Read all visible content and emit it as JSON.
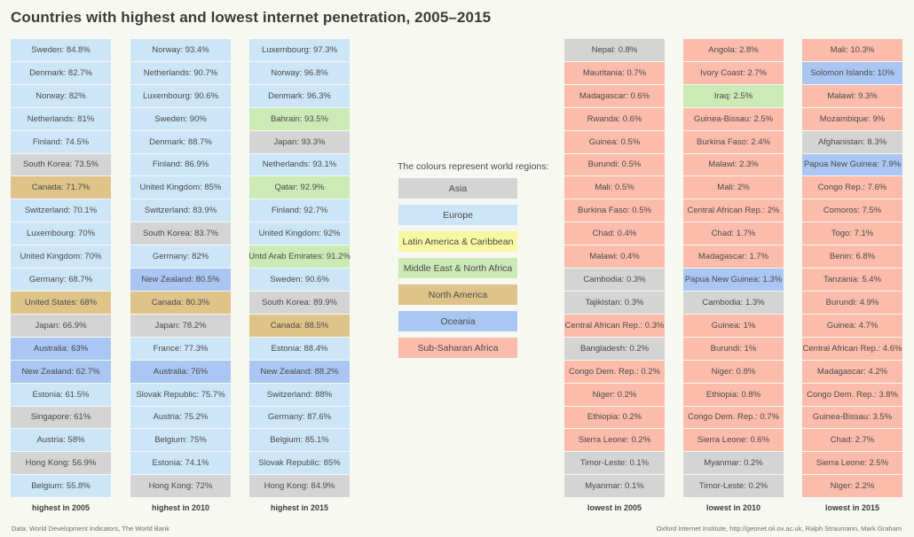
{
  "title": "Countries with highest and lowest internet penetration, 2005–2015",
  "legend": {
    "title": "The colours represent world regions:",
    "regions": [
      {
        "label": "Asia",
        "region": "asia"
      },
      {
        "label": "Europe",
        "region": "europe"
      },
      {
        "label": "Latin America & Caribbean",
        "region": "latam"
      },
      {
        "label": "Middle East & North Africa",
        "region": "mena"
      },
      {
        "label": "North America",
        "region": "north_america"
      },
      {
        "label": "Oceania",
        "region": "oceania"
      },
      {
        "label": "Sub-Saharan Africa",
        "region": "ssa"
      }
    ]
  },
  "footer": {
    "left": "Data: World Development Indicators, The World Bank",
    "right": "Oxford Internet Institute, http://geonet.oii.ox.ac.uk, Ralph Straumann, Mark Graham"
  },
  "colors": {
    "asia": "#d4d4d4",
    "europe": "#cce6f8",
    "latam": "#f8f8a2",
    "mena": "#cbeab6",
    "north_america": "#dec489",
    "oceania": "#a9c7f2",
    "ssa": "#fcbcab"
  },
  "chart_data": {
    "type": "table",
    "title": "Countries with highest and lowest internet penetration, 2005–2015",
    "unit": "percent of population using the internet",
    "columns": [
      {
        "label": "highest in 2005",
        "entries": [
          [
            "Sweden",
            "84.8%",
            "europe"
          ],
          [
            "Denmark",
            "82.7%",
            "europe"
          ],
          [
            "Norway",
            "82%",
            "europe"
          ],
          [
            "Netherlands",
            "81%",
            "europe"
          ],
          [
            "Finland",
            "74.5%",
            "europe"
          ],
          [
            "South Korea",
            "73.5%",
            "asia"
          ],
          [
            "Canada",
            "71.7%",
            "north_america"
          ],
          [
            "Switzerland",
            "70.1%",
            "europe"
          ],
          [
            "Luxembourg",
            "70%",
            "europe"
          ],
          [
            "United Kingdom",
            "70%",
            "europe"
          ],
          [
            "Germany",
            "68.7%",
            "europe"
          ],
          [
            "United States",
            "68%",
            "north_america"
          ],
          [
            "Japan",
            "66.9%",
            "asia"
          ],
          [
            "Australia",
            "63%",
            "oceania"
          ],
          [
            "New Zealand",
            "62.7%",
            "oceania"
          ],
          [
            "Estonia",
            "61.5%",
            "europe"
          ],
          [
            "Singapore",
            "61%",
            "asia"
          ],
          [
            "Austria",
            "58%",
            "europe"
          ],
          [
            "Hong Kong",
            "56.9%",
            "asia"
          ],
          [
            "Belgium",
            "55.8%",
            "europe"
          ]
        ]
      },
      {
        "label": "highest in 2010",
        "entries": [
          [
            "Norway",
            "93.4%",
            "europe"
          ],
          [
            "Netherlands",
            "90.7%",
            "europe"
          ],
          [
            "Luxembourg",
            "90.6%",
            "europe"
          ],
          [
            "Sweden",
            "90%",
            "europe"
          ],
          [
            "Denmark",
            "88.7%",
            "europe"
          ],
          [
            "Finland",
            "86.9%",
            "europe"
          ],
          [
            "United Kingdom",
            "85%",
            "europe"
          ],
          [
            "Switzerland",
            "83.9%",
            "europe"
          ],
          [
            "South Korea",
            "83.7%",
            "asia"
          ],
          [
            "Germany",
            "82%",
            "europe"
          ],
          [
            "New Zealand",
            "80.5%",
            "oceania"
          ],
          [
            "Canada",
            "80.3%",
            "north_america"
          ],
          [
            "Japan",
            "78.2%",
            "asia"
          ],
          [
            "France",
            "77.3%",
            "europe"
          ],
          [
            "Australia",
            "76%",
            "oceania"
          ],
          [
            "Slovak Republic",
            "75.7%",
            "europe"
          ],
          [
            "Austria",
            "75.2%",
            "europe"
          ],
          [
            "Belgium",
            "75%",
            "europe"
          ],
          [
            "Estonia",
            "74.1%",
            "europe"
          ],
          [
            "Hong Kong",
            "72%",
            "asia"
          ]
        ]
      },
      {
        "label": "highest in 2015",
        "entries": [
          [
            "Luxembourg",
            "97.3%",
            "europe"
          ],
          [
            "Norway",
            "96.8%",
            "europe"
          ],
          [
            "Denmark",
            "96.3%",
            "europe"
          ],
          [
            "Bahrain",
            "93.5%",
            "mena"
          ],
          [
            "Japan",
            "93.3%",
            "asia"
          ],
          [
            "Netherlands",
            "93.1%",
            "europe"
          ],
          [
            "Qatar",
            "92.9%",
            "mena"
          ],
          [
            "Finland",
            "92.7%",
            "europe"
          ],
          [
            "United Kingdom",
            "92%",
            "europe"
          ],
          [
            "Untd Arab Emirates",
            "91.2%",
            "mena"
          ],
          [
            "Sweden",
            "90.6%",
            "europe"
          ],
          [
            "South Korea",
            "89.9%",
            "asia"
          ],
          [
            "Canada",
            "88.5%",
            "north_america"
          ],
          [
            "Estonia",
            "88.4%",
            "europe"
          ],
          [
            "New Zealand",
            "88.2%",
            "oceania"
          ],
          [
            "Switzerland",
            "88%",
            "europe"
          ],
          [
            "Germany",
            "87.6%",
            "europe"
          ],
          [
            "Belgium",
            "85.1%",
            "europe"
          ],
          [
            "Slovak Republic",
            "85%",
            "europe"
          ],
          [
            "Hong Kong",
            "84.9%",
            "asia"
          ]
        ]
      },
      {
        "label": "lowest in 2005",
        "entries": [
          [
            "Nepal",
            "0.8%",
            "asia"
          ],
          [
            "Mauritania",
            "0.7%",
            "ssa"
          ],
          [
            "Madagascar",
            "0.6%",
            "ssa"
          ],
          [
            "Rwanda",
            "0.6%",
            "ssa"
          ],
          [
            "Guinea",
            "0.5%",
            "ssa"
          ],
          [
            "Burundi",
            "0.5%",
            "ssa"
          ],
          [
            "Mali",
            "0.5%",
            "ssa"
          ],
          [
            "Burkina Faso",
            "0.5%",
            "ssa"
          ],
          [
            "Chad",
            "0.4%",
            "ssa"
          ],
          [
            "Malawi",
            "0.4%",
            "ssa"
          ],
          [
            "Cambodia",
            "0.3%",
            "asia"
          ],
          [
            "Tajikistan",
            "0.3%",
            "asia"
          ],
          [
            "Central African Rep.",
            "0.3%",
            "ssa"
          ],
          [
            "Bangladesh",
            "0.2%",
            "asia"
          ],
          [
            "Congo Dem. Rep.",
            "0.2%",
            "ssa"
          ],
          [
            "Niger",
            "0.2%",
            "ssa"
          ],
          [
            "Ethiopia",
            "0.2%",
            "ssa"
          ],
          [
            "Sierra Leone",
            "0.2%",
            "ssa"
          ],
          [
            "Timor-Leste",
            "0.1%",
            "asia"
          ],
          [
            "Myanmar",
            "0.1%",
            "asia"
          ]
        ]
      },
      {
        "label": "lowest in 2010",
        "entries": [
          [
            "Angola",
            "2.8%",
            "ssa"
          ],
          [
            "Ivory Coast",
            "2.7%",
            "ssa"
          ],
          [
            "Iraq",
            "2.5%",
            "mena"
          ],
          [
            "Guinea-Bissau",
            "2.5%",
            "ssa"
          ],
          [
            "Burkina Faso",
            "2.4%",
            "ssa"
          ],
          [
            "Malawi",
            "2.3%",
            "ssa"
          ],
          [
            "Mali",
            "2%",
            "ssa"
          ],
          [
            "Central African Rep.",
            "2%",
            "ssa"
          ],
          [
            "Chad",
            "1.7%",
            "ssa"
          ],
          [
            "Madagascar",
            "1.7%",
            "ssa"
          ],
          [
            "Papua New Guinea",
            "1.3%",
            "oceania"
          ],
          [
            "Cambodia",
            "1.3%",
            "asia"
          ],
          [
            "Guinea",
            "1%",
            "ssa"
          ],
          [
            "Burundi",
            "1%",
            "ssa"
          ],
          [
            "Niger",
            "0.8%",
            "ssa"
          ],
          [
            "Ethiopia",
            "0.8%",
            "ssa"
          ],
          [
            "Congo Dem. Rep.",
            "0.7%",
            "ssa"
          ],
          [
            "Sierra Leone",
            "0.6%",
            "ssa"
          ],
          [
            "Myanmar",
            "0.2%",
            "asia"
          ],
          [
            "Timor-Leste",
            "0.2%",
            "asia"
          ]
        ]
      },
      {
        "label": "lowest in 2015",
        "entries": [
          [
            "Mali",
            "10.3%",
            "ssa"
          ],
          [
            "Solomon Islands",
            "10%",
            "oceania"
          ],
          [
            "Malawi",
            "9.3%",
            "ssa"
          ],
          [
            "Mozambique",
            "9%",
            "ssa"
          ],
          [
            "Afghanistan",
            "8.3%",
            "asia"
          ],
          [
            "Papua New Guinea",
            "7.9%",
            "oceania"
          ],
          [
            "Congo Rep.",
            "7.6%",
            "ssa"
          ],
          [
            "Comoros",
            "7.5%",
            "ssa"
          ],
          [
            "Togo",
            "7.1%",
            "ssa"
          ],
          [
            "Benin",
            "6.8%",
            "ssa"
          ],
          [
            "Tanzania",
            "5.4%",
            "ssa"
          ],
          [
            "Burundi",
            "4.9%",
            "ssa"
          ],
          [
            "Guinea",
            "4.7%",
            "ssa"
          ],
          [
            "Central African Rep.",
            "4.6%",
            "ssa"
          ],
          [
            "Madagascar",
            "4.2%",
            "ssa"
          ],
          [
            "Congo Dem. Rep.",
            "3.8%",
            "ssa"
          ],
          [
            "Guinea-Bissau",
            "3.5%",
            "ssa"
          ],
          [
            "Chad",
            "2.7%",
            "ssa"
          ],
          [
            "Sierra Leone",
            "2.5%",
            "ssa"
          ],
          [
            "Niger",
            "2.2%",
            "ssa"
          ]
        ]
      }
    ]
  }
}
